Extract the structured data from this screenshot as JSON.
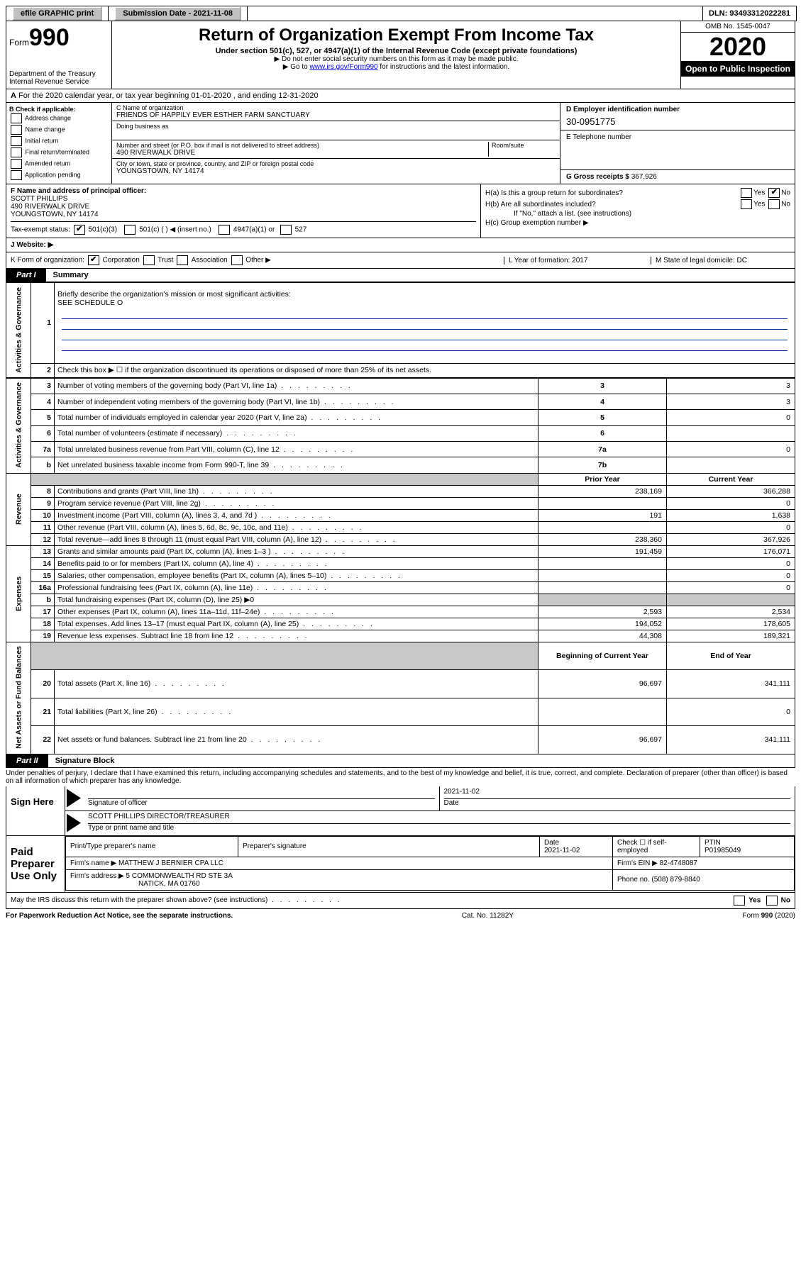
{
  "topbar": {
    "efile": "efile GRAPHIC print",
    "submission": "Submission Date - 2021-11-08",
    "dln": "DLN: 93493312022281"
  },
  "header": {
    "form_word": "Form",
    "form_no": "990",
    "dept1": "Department of the Treasury",
    "dept2": "Internal Revenue Service",
    "title": "Return of Organization Exempt From Income Tax",
    "subtitle": "Under section 501(c), 527, or 4947(a)(1) of the Internal Revenue Code (except private foundations)",
    "note1": "▶ Do not enter social security numbers on this form as it may be made public.",
    "note2a": "▶ Go to ",
    "note2_link": "www.irs.gov/Form990",
    "note2b": " for instructions and the latest information.",
    "omb": "OMB No. 1545-0047",
    "year": "2020",
    "open": "Open to Public Inspection"
  },
  "lineA": "For the 2020 calendar year, or tax year beginning 01-01-2020   , and ending 12-31-2020",
  "boxB": {
    "label": "B Check if applicable:",
    "opts": [
      "Address change",
      "Name change",
      "Initial return",
      "Final return/terminated",
      "Amended return",
      "Application pending"
    ]
  },
  "boxC": {
    "name_lbl": "C Name of organization",
    "name": "FRIENDS OF HAPPILY EVER ESTHER FARM SANCTUARY",
    "dba": "Doing business as",
    "addr_lbl": "Number and street (or P.O. box if mail is not delivered to street address)",
    "room": "Room/suite",
    "addr": "490 RIVERWALK DRIVE",
    "city_lbl": "City or town, state or province, country, and ZIP or foreign postal code",
    "city": "YOUNGSTOWN, NY  14174"
  },
  "boxD": {
    "lbl": "D Employer identification number",
    "val": "30-0951775"
  },
  "boxE": {
    "lbl": "E Telephone number",
    "val": ""
  },
  "boxG": {
    "lbl": "G Gross receipts $",
    "val": "367,926"
  },
  "boxF": {
    "lbl": "F  Name and address of principal officer:",
    "name": "SCOTT PHILLIPS",
    "addr": "490 RIVERWALK DRIVE",
    "city": "YOUNGSTOWN, NY  14174"
  },
  "boxH": {
    "a": "H(a)  Is this a group return for subordinates?",
    "b": "H(b)  Are all subordinates included?",
    "ifno": "If \"No,\" attach a list. (see instructions)",
    "c": "H(c)  Group exemption number ▶"
  },
  "boxI": {
    "lbl": "Tax-exempt status:",
    "c3": "501(c)(3)",
    "c": "501(c) (  ) ◀ (insert no.)",
    "a1": "4947(a)(1) or",
    "s527": "527"
  },
  "boxJ": {
    "lbl": "J    Website: ▶"
  },
  "boxK": {
    "lbl": "K Form of organization:",
    "corp": "Corporation",
    "trust": "Trust",
    "assoc": "Association",
    "other": "Other ▶"
  },
  "boxL": {
    "lbl": "L Year of formation: 2017"
  },
  "boxM": {
    "lbl": "M State of legal domicile: DC"
  },
  "parts": {
    "p1": "Part I",
    "p1t": "Summary",
    "p2": "Part II",
    "p2t": "Signature Block"
  },
  "summary": {
    "l1": "Briefly describe the organization's mission or most significant activities:",
    "l1v": "SEE SCHEDULE O",
    "l2": "Check this box ▶ ☐  if the organization discontinued its operations or disposed of more than 25% of its net assets.",
    "rows_top": [
      {
        "n": "3",
        "t": "Number of voting members of the governing body (Part VI, line 1a)",
        "b": "3",
        "v": "3"
      },
      {
        "n": "4",
        "t": "Number of independent voting members of the governing body (Part VI, line 1b)",
        "b": "4",
        "v": "3"
      },
      {
        "n": "5",
        "t": "Total number of individuals employed in calendar year 2020 (Part V, line 2a)",
        "b": "5",
        "v": "0"
      },
      {
        "n": "6",
        "t": "Total number of volunteers (estimate if necessary)",
        "b": "6",
        "v": ""
      },
      {
        "n": "7a",
        "t": "Total unrelated business revenue from Part VIII, column (C), line 12",
        "b": "7a",
        "v": "0"
      },
      {
        "n": "b",
        "t": "Net unrelated business taxable income from Form 990-T, line 39",
        "b": "7b",
        "v": ""
      }
    ],
    "hdr_prior": "Prior Year",
    "hdr_curr": "Current Year",
    "rev": [
      {
        "n": "8",
        "t": "Contributions and grants (Part VIII, line 1h)",
        "p": "238,169",
        "c": "366,288"
      },
      {
        "n": "9",
        "t": "Program service revenue (Part VIII, line 2g)",
        "p": "",
        "c": "0"
      },
      {
        "n": "10",
        "t": "Investment income (Part VIII, column (A), lines 3, 4, and 7d )",
        "p": "191",
        "c": "1,638"
      },
      {
        "n": "11",
        "t": "Other revenue (Part VIII, column (A), lines 5, 6d, 8c, 9c, 10c, and 11e)",
        "p": "",
        "c": "0"
      },
      {
        "n": "12",
        "t": "Total revenue—add lines 8 through 11 (must equal Part VIII, column (A), line 12)",
        "p": "238,360",
        "c": "367,926"
      }
    ],
    "exp": [
      {
        "n": "13",
        "t": "Grants and similar amounts paid (Part IX, column (A), lines 1–3 )",
        "p": "191,459",
        "c": "176,071"
      },
      {
        "n": "14",
        "t": "Benefits paid to or for members (Part IX, column (A), line 4)",
        "p": "",
        "c": "0"
      },
      {
        "n": "15",
        "t": "Salaries, other compensation, employee benefits (Part IX, column (A), lines 5–10)",
        "p": "",
        "c": "0"
      },
      {
        "n": "16a",
        "t": "Professional fundraising fees (Part IX, column (A), line 11e)",
        "p": "",
        "c": "0"
      }
    ],
    "l16b": "Total fundraising expenses (Part IX, column (D), line 25) ▶0",
    "exp2": [
      {
        "n": "17",
        "t": "Other expenses (Part IX, column (A), lines 11a–11d, 11f–24e)",
        "p": "2,593",
        "c": "2,534"
      },
      {
        "n": "18",
        "t": "Total expenses. Add lines 13–17 (must equal Part IX, column (A), line 25)",
        "p": "194,052",
        "c": "178,605"
      },
      {
        "n": "19",
        "t": "Revenue less expenses. Subtract line 18 from line 12",
        "p": "44,308",
        "c": "189,321"
      }
    ],
    "hdr_beg": "Beginning of Current Year",
    "hdr_end": "End of Year",
    "net": [
      {
        "n": "20",
        "t": "Total assets (Part X, line 16)",
        "p": "96,697",
        "c": "341,111"
      },
      {
        "n": "21",
        "t": "Total liabilities (Part X, line 26)",
        "p": "",
        "c": "0"
      },
      {
        "n": "22",
        "t": "Net assets or fund balances. Subtract line 21 from line 20",
        "p": "96,697",
        "c": "341,111"
      }
    ],
    "side_gov": "Activities & Governance",
    "side_rev": "Revenue",
    "side_exp": "Expenses",
    "side_net": "Net Assets or Fund Balances"
  },
  "penalty": "Under penalties of perjury, I declare that I have examined this return, including accompanying schedules and statements, and to the best of my knowledge and belief, it is true, correct, and complete. Declaration of preparer (other than officer) is based on all information of which preparer has any knowledge.",
  "sign": {
    "here": "Sign Here",
    "sig_of": "Signature of officer",
    "date": "Date",
    "date_v": "2021-11-02",
    "typed": "SCOTT PHILLIPS  DIRECTOR/TREASURER",
    "typed_lbl": "Type or print name and title"
  },
  "prep": {
    "label": "Paid Preparer Use Only",
    "h1": "Print/Type preparer's name",
    "h2": "Preparer's signature",
    "h3": "Date",
    "h3v": "2021-11-02",
    "h4": "Check ☐ if self-employed",
    "h5": "PTIN",
    "h5v": "P01985049",
    "firm_lbl": "Firm's name    ▶",
    "firm": "MATTHEW J BERNIER CPA LLC",
    "ein_lbl": "Firm's EIN ▶",
    "ein": "82-4748087",
    "addr_lbl": "Firm's address ▶",
    "addr1": "5 COMMONWEALTH RD STE 3A",
    "addr2": "NATICK, MA  01760",
    "phone_lbl": "Phone no.",
    "phone": "(508) 879-8840"
  },
  "discuss": "May the IRS discuss this return with the preparer shown above? (see instructions)",
  "footer": {
    "l": "For Paperwork Reduction Act Notice, see the separate instructions.",
    "m": "Cat. No. 11282Y",
    "r": "Form 990 (2020)"
  },
  "labels": {
    "yes": "Yes",
    "no": "No"
  }
}
